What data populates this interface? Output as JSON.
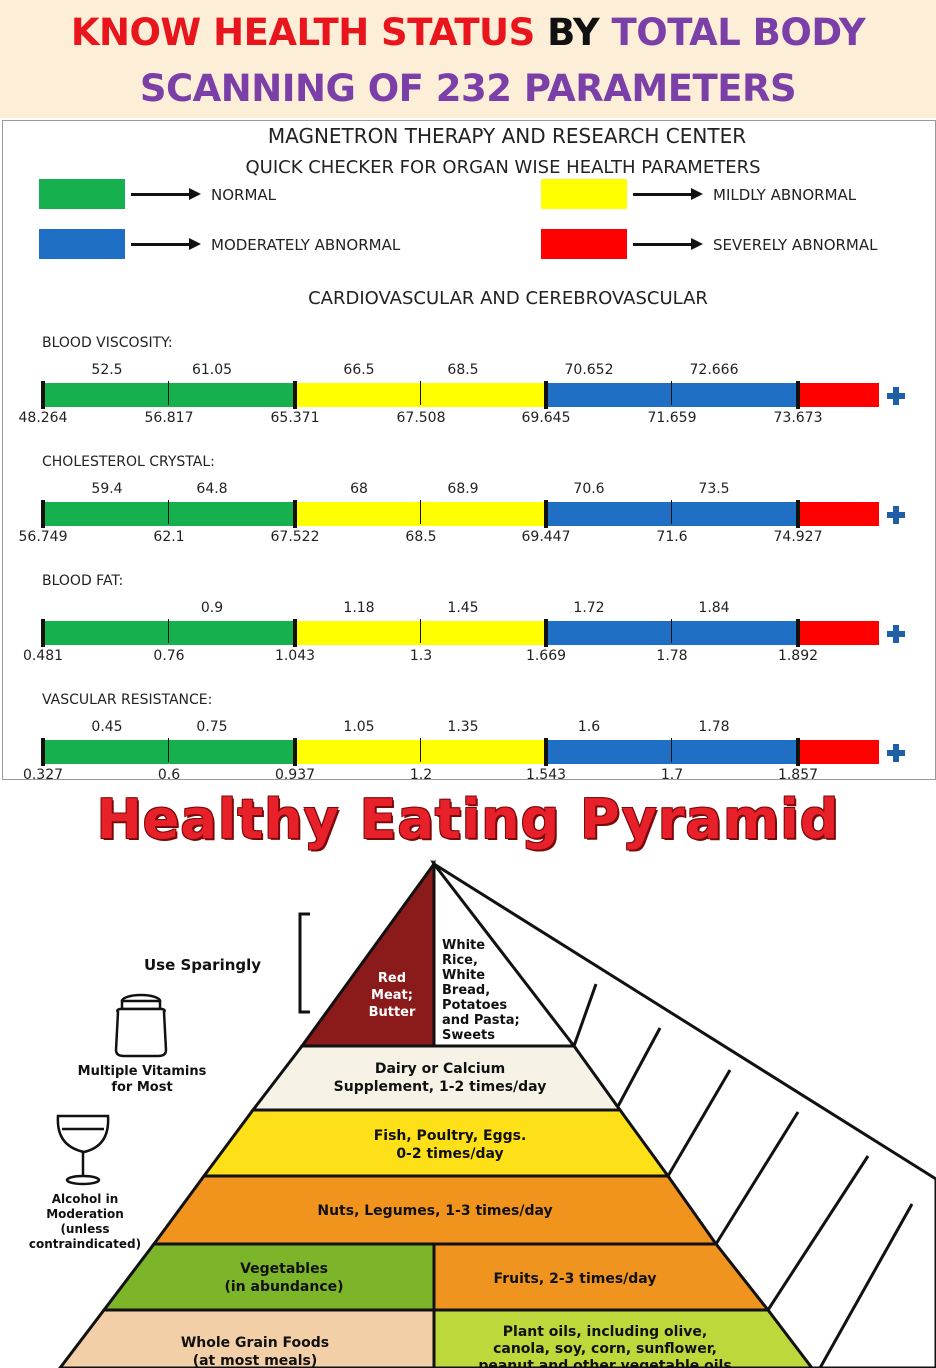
{
  "header": {
    "line1_red": "KNOW HEALTH STATUS",
    "line1_black": "BY",
    "line1_purple": "TOTAL BODY",
    "line2": "SCANNING OF 232 PARAMETERS"
  },
  "report": {
    "center_name": "MAGNETRON THERAPY AND RESEARCH CENTER",
    "subtitle": "QUICK CHECKER FOR ORGAN WISE HEALTH PARAMETERS",
    "legend": [
      {
        "label": "NORMAL",
        "color": "#17b04f"
      },
      {
        "label": "MILDLY ABNORMAL",
        "color": "#ffff00"
      },
      {
        "label": "MODERATELY ABNORMAL",
        "color": "#1f6fc4"
      },
      {
        "label": "SEVERELY ABNORMAL",
        "color": "#ff0000"
      }
    ],
    "section_title": "CARDIOVASCULAR AND CEREBROVASCULAR",
    "parameters": [
      {
        "name": "BLOOD VISCOSITY:",
        "top_values": [
          "52.5",
          "61.05",
          "66.5",
          "68.5",
          "70.652",
          "72.666"
        ],
        "bottom_values": [
          "48.264",
          "56.817",
          "65.371",
          "67.508",
          "69.645",
          "71.659",
          "73.673"
        ]
      },
      {
        "name": "CHOLESTEROL CRYSTAL:",
        "top_values": [
          "59.4",
          "64.8",
          "68",
          "68.9",
          "70.6",
          "73.5"
        ],
        "bottom_values": [
          "56.749",
          "62.1",
          "67.522",
          "68.5",
          "69.447",
          "71.6",
          "74.927"
        ]
      },
      {
        "name": "BLOOD FAT:",
        "top_values": [
          "",
          "0.9",
          "1.18",
          "1.45",
          "1.72",
          "1.84"
        ],
        "bottom_values": [
          "0.481",
          "0.76",
          "1.043",
          "1.3",
          "1.669",
          "1.78",
          "1.892"
        ]
      },
      {
        "name": "VASCULAR RESISTANCE:",
        "top_values": [
          "0.45",
          "0.75",
          "1.05",
          "1.35",
          "1.6",
          "1.78"
        ],
        "bottom_values": [
          "0.327",
          "0.6",
          "0.937",
          "1.2",
          "1.543",
          "1.7",
          "1.857"
        ]
      }
    ]
  },
  "pyramid": {
    "title": "Healthy Eating Pyramid",
    "side_labels": {
      "use_sparingly": "Use Sparingly",
      "vitamins_1": "Multiple Vitamins",
      "vitamins_2": "for Most",
      "alcohol_1": "Alcohol in",
      "alcohol_2": "Moderation",
      "alcohol_3": "(unless",
      "alcohol_4": "contraindicated)"
    },
    "tiers": {
      "red_meat": [
        "Red",
        "Meat;",
        "Butter"
      ],
      "white_rice": [
        "White",
        "Rice,",
        "White",
        "Bread,",
        "Potatoes",
        "and Pasta;",
        "Sweets"
      ],
      "dairy": [
        "Dairy or Calcium",
        "Supplement, 1-2 times/day"
      ],
      "fish": [
        "Fish, Poultry, Eggs.",
        "0-2 times/day"
      ],
      "nuts": [
        "Nuts, Legumes, 1-3 times/day"
      ],
      "vegetables": [
        "Vegetables",
        "(in abundance)"
      ],
      "fruits": [
        "Fruits, 2-3 times/day"
      ],
      "whole_grain": [
        "Whole Grain Foods",
        "(at most meals)"
      ],
      "plant_oils": [
        "Plant oils, including olive,",
        "canola, soy, corn, sunflower,",
        "peanut and other vegetable oils"
      ]
    }
  }
}
